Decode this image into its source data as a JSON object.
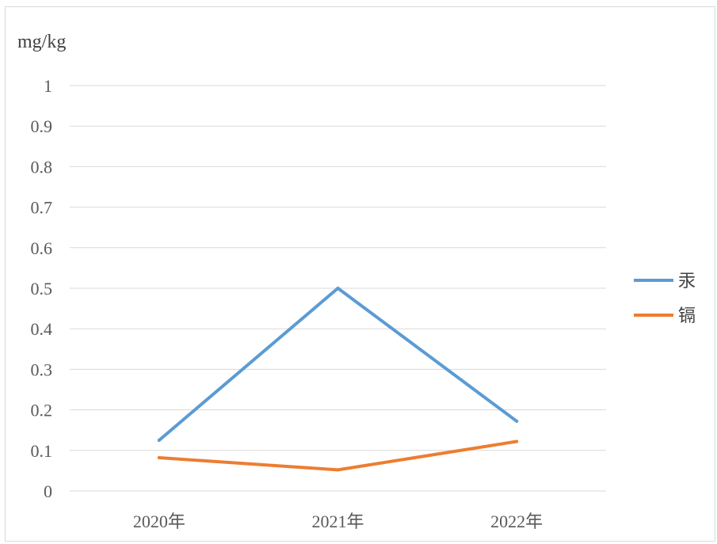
{
  "chart_data": {
    "type": "line",
    "unit_label": "mg/kg",
    "categories": [
      "2020年",
      "2021年",
      "2022年"
    ],
    "y_ticks": [
      "0",
      "0.1",
      "0.2",
      "0.3",
      "0.4",
      "0.5",
      "0.6",
      "0.7",
      "0.8",
      "0.9",
      "1"
    ],
    "ylim": [
      0,
      1
    ],
    "grid": true,
    "legend_position": "right",
    "series": [
      {
        "name": "汞",
        "values": [
          0.125,
          0.5,
          0.172
        ],
        "color": "#5b9bd5"
      },
      {
        "name": "镉",
        "values": [
          0.082,
          0.052,
          0.122
        ],
        "color": "#ed7d31"
      }
    ]
  }
}
